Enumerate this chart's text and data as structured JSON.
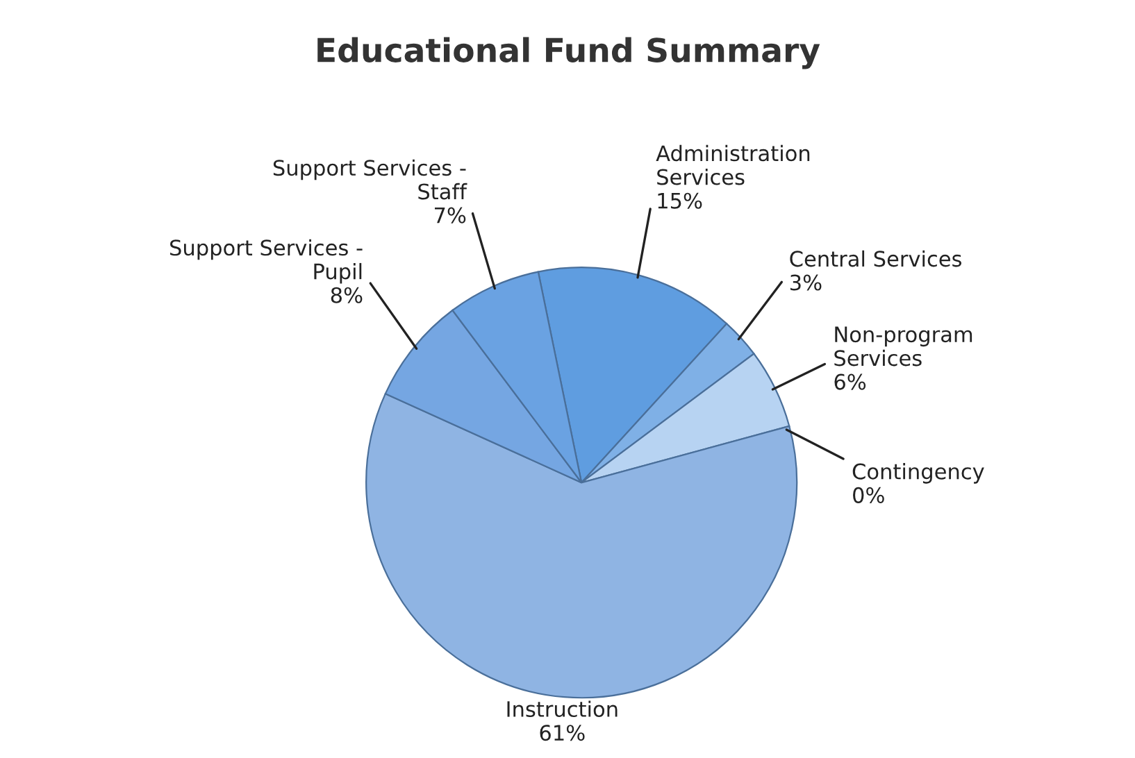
{
  "chart_data": {
    "type": "pie",
    "title": "Educational Fund Summary",
    "categories": [
      "Administration Services",
      "Central Services",
      "Non-program Services",
      "Contingency",
      "Instruction",
      "Support Services - Pupil",
      "Support Services - Staff"
    ],
    "values": [
      15,
      3,
      6,
      0,
      61,
      8,
      7
    ],
    "colors": [
      "#5f9de0",
      "#7fb0e6",
      "#b7d3f2",
      "#c9def5",
      "#8fb4e3",
      "#75a6e2",
      "#6aa2e2"
    ],
    "value_labels": [
      "15%",
      "3%",
      "6%",
      "0%",
      "61%",
      "8%",
      "7%"
    ],
    "legend": false
  }
}
